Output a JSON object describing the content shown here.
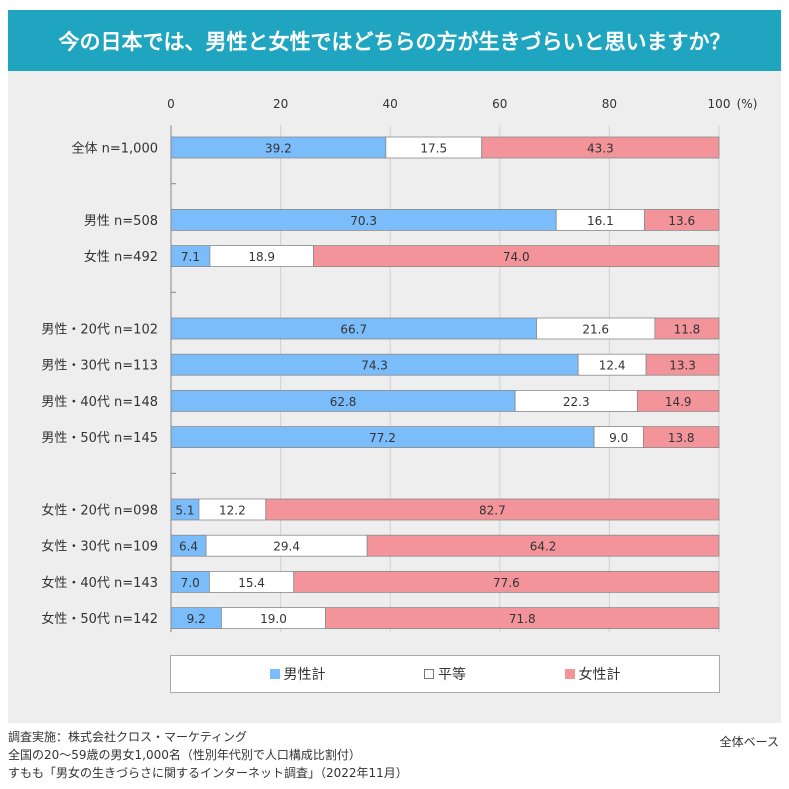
{
  "title": "今の日本では、男性と女性ではどちらの方が生きづらいと思いますか？",
  "chart_data": {
    "type": "bar",
    "orientation": "horizontal-stacked-100",
    "xlim": [
      0,
      100
    ],
    "xticks": [
      "0",
      "20",
      "40",
      "60",
      "80",
      "100"
    ],
    "unit_label": "(%)",
    "colors": {
      "male": "#7bbcfb",
      "equal": "#ffffff",
      "female": "#f3949a"
    },
    "legend": [
      {
        "key": "male",
        "label": "男性計"
      },
      {
        "key": "equal",
        "label": "平等"
      },
      {
        "key": "female",
        "label": "女性計"
      }
    ],
    "rows": [
      {
        "label": "全体 n=1,000",
        "values": [
          39.2,
          17.5,
          43.3
        ]
      },
      {
        "label": "",
        "values": null
      },
      {
        "label": "男性 n=508",
        "values": [
          70.3,
          16.1,
          13.6
        ]
      },
      {
        "label": "女性 n=492",
        "values": [
          7.1,
          18.9,
          74.0
        ]
      },
      {
        "label": "",
        "values": null
      },
      {
        "label": "男性・20代 n=102",
        "values": [
          66.7,
          21.6,
          11.8
        ]
      },
      {
        "label": "男性・30代 n=113",
        "values": [
          74.3,
          12.4,
          13.3
        ]
      },
      {
        "label": "男性・40代 n=148",
        "values": [
          62.8,
          22.3,
          14.9
        ]
      },
      {
        "label": "男性・50代 n=145",
        "values": [
          77.2,
          9.0,
          13.8
        ]
      },
      {
        "label": "",
        "values": null
      },
      {
        "label": "女性・20代 n=098",
        "values": [
          5.1,
          12.2,
          82.7
        ]
      },
      {
        "label": "女性・30代 n=109",
        "values": [
          6.4,
          29.4,
          64.2
        ]
      },
      {
        "label": "女性・40代 n=143",
        "values": [
          7.0,
          15.4,
          77.6
        ]
      },
      {
        "label": "女性・50代 n=142",
        "values": [
          9.2,
          19.0,
          71.8
        ]
      }
    ]
  },
  "footer": {
    "lines": [
      "調査実施：株式会社クロス・マーケティング",
      "全国の20〜59歳の男女1,000名（性別年代別で人口構成比割付）",
      "すもも「男女の生きづらさに関するインターネット調査」（2022年11月）"
    ],
    "base": "全体ベース"
  }
}
